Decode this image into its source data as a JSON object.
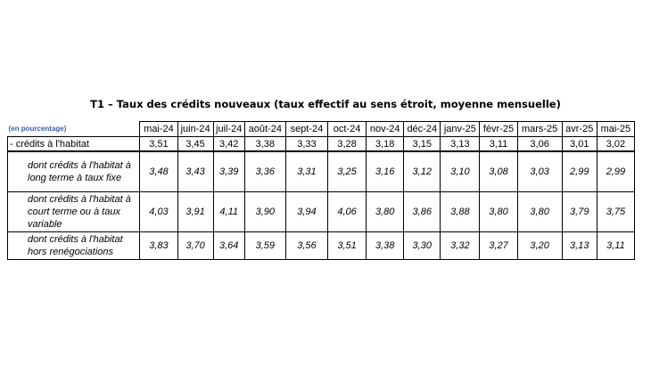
{
  "title": "T1 – Taux des crédits nouveaux (taux effectif au sens étroit, moyenne mensuelle)",
  "unit_label": "(en pourcentage)",
  "months": [
    "mai-24",
    "juin-24",
    "juil-24",
    "août-24",
    "sept-24",
    "oct-24",
    "nov-24",
    "déc-24",
    "janv-25",
    "févr-25",
    "mars-25",
    "avr-25",
    "mai-25"
  ],
  "rows": [
    {
      "label": "- crédits à l'habitat",
      "values": [
        "3,51",
        "3,45",
        "3,42",
        "3,38",
        "3,33",
        "3,28",
        "3,18",
        "3,15",
        "3,13",
        "3,11",
        "3,06",
        "3,01",
        "3,02"
      ]
    },
    {
      "label": "dont crédits à l'habitat à long terme à taux fixe",
      "values": [
        "3,48",
        "3,43",
        "3,39",
        "3,36",
        "3,31",
        "3,25",
        "3,16",
        "3,12",
        "3,10",
        "3,08",
        "3,03",
        "2,99",
        "2,99"
      ]
    },
    {
      "label": "dont crédits à l'habitat à court terme ou à taux variable",
      "values": [
        "4,03",
        "3,91",
        "4,11",
        "3,90",
        "3,94",
        "4,06",
        "3,80",
        "3,86",
        "3,88",
        "3,80",
        "3,80",
        "3,79",
        "3,75"
      ]
    },
    {
      "label": "dont crédits à l'habitat hors renégociations",
      "values": [
        "3,83",
        "3,70",
        "3,64",
        "3,59",
        "3,56",
        "3,51",
        "3,38",
        "3,30",
        "3,32",
        "3,27",
        "3,20",
        "3,13",
        "3,11"
      ]
    }
  ]
}
